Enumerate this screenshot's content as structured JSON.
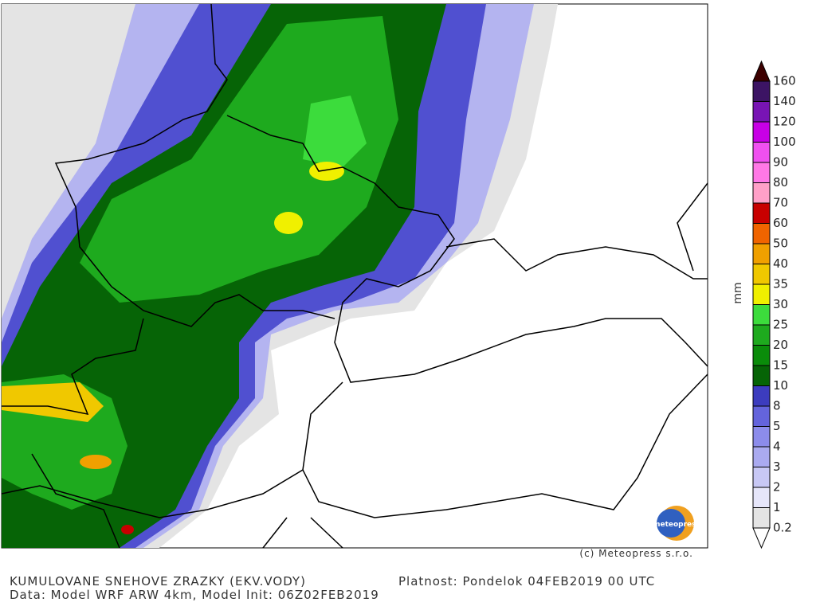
{
  "map": {
    "unit": "mm",
    "copyright": "(c) Meteopress s.r.o.",
    "logo": "meteopress",
    "title": "KUMULOVANE SNEHOVE ZRAZKY (EKV.VODY)",
    "validity": "Platnost: Pondelok 04FEB2019 00 UTC",
    "source": "Data: Model WRF ARW 4km, Model Init: 06Z02FEB2019"
  },
  "legend": {
    "levels": [
      {
        "label": 0.2,
        "color": "#e4e4e4"
      },
      {
        "label": 1,
        "color": "#e6e6fa"
      },
      {
        "label": 2,
        "color": "#c8c8f5"
      },
      {
        "label": 3,
        "color": "#aaaaf0"
      },
      {
        "label": 4,
        "color": "#8c8ceb"
      },
      {
        "label": 5,
        "color": "#6464dc"
      },
      {
        "label": 8,
        "color": "#3c3cbe"
      },
      {
        "label": 10,
        "color": "#066406"
      },
      {
        "label": 15,
        "color": "#0a8c0a"
      },
      {
        "label": 20,
        "color": "#1eaa1e"
      },
      {
        "label": 25,
        "color": "#3cdc3c"
      },
      {
        "label": 30,
        "color": "#f0f000"
      },
      {
        "label": 35,
        "color": "#f0c800"
      },
      {
        "label": 40,
        "color": "#f0a000"
      },
      {
        "label": 50,
        "color": "#f06400"
      },
      {
        "label": 60,
        "color": "#c80000"
      },
      {
        "label": 70,
        "color": "#ffa0c8"
      },
      {
        "label": 80,
        "color": "#ff78e6"
      },
      {
        "label": 90,
        "color": "#f050f0"
      },
      {
        "label": 100,
        "color": "#c800e6"
      },
      {
        "label": 120,
        "color": "#7814b4"
      },
      {
        "label": 140,
        "color": "#3c1464"
      },
      {
        "label": 160,
        "color": "#3c0000"
      }
    ]
  }
}
